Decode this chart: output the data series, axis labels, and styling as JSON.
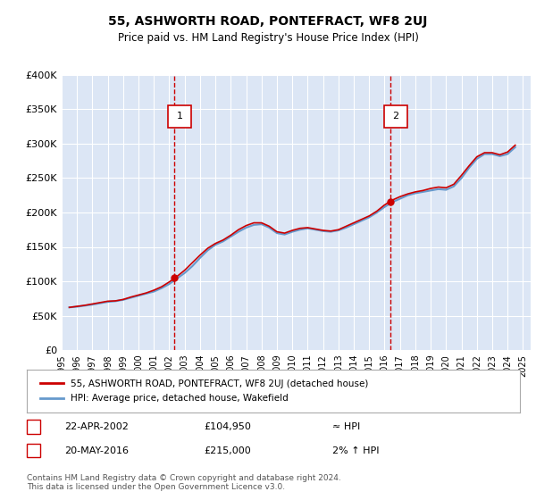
{
  "title": "55, ASHWORTH ROAD, PONTEFRACT, WF8 2UJ",
  "subtitle": "Price paid vs. HM Land Registry's House Price Index (HPI)",
  "background_color": "#dce6f5",
  "plot_bg_color": "#dce6f5",
  "ylabel_color": "#000000",
  "grid_color": "#ffffff",
  "red_line_color": "#cc0000",
  "blue_line_color": "#6699cc",
  "transaction_line_color": "#cc0000",
  "marker_box_color": "#cc0000",
  "ylim": [
    0,
    400000
  ],
  "yticks": [
    0,
    50000,
    100000,
    150000,
    200000,
    250000,
    300000,
    350000,
    400000
  ],
  "ytick_labels": [
    "£0",
    "£50K",
    "£100K",
    "£150K",
    "£200K",
    "£250K",
    "£300K",
    "£350K",
    "£400K"
  ],
  "xlim_start": 1995.0,
  "xlim_end": 2025.5,
  "transactions": [
    {
      "year": 2002.31,
      "price": 104950,
      "label": "1",
      "date": "22-APR-2002",
      "amount": "£104,950",
      "relation": "≈ HPI"
    },
    {
      "year": 2016.38,
      "price": 215000,
      "label": "2",
      "date": "20-MAY-2016",
      "amount": "£215,000",
      "relation": "2% ↑ HPI"
    }
  ],
  "legend_label_red": "55, ASHWORTH ROAD, PONTEFRACT, WF8 2UJ (detached house)",
  "legend_label_blue": "HPI: Average price, detached house, Wakefield",
  "footnote": "Contains HM Land Registry data © Crown copyright and database right 2024.\nThis data is licensed under the Open Government Licence v3.0.",
  "hpi_data": {
    "years": [
      1995.5,
      1996.0,
      1996.5,
      1997.0,
      1997.5,
      1998.0,
      1998.5,
      1999.0,
      1999.5,
      2000.0,
      2000.5,
      2001.0,
      2001.5,
      2002.0,
      2002.5,
      2003.0,
      2003.5,
      2004.0,
      2004.5,
      2005.0,
      2005.5,
      2006.0,
      2006.5,
      2007.0,
      2007.5,
      2008.0,
      2008.5,
      2009.0,
      2009.5,
      2010.0,
      2010.5,
      2011.0,
      2011.5,
      2012.0,
      2012.5,
      2013.0,
      2013.5,
      2014.0,
      2014.5,
      2015.0,
      2015.5,
      2016.0,
      2016.5,
      2017.0,
      2017.5,
      2018.0,
      2018.5,
      2019.0,
      2019.5,
      2020.0,
      2020.5,
      2021.0,
      2021.5,
      2022.0,
      2022.5,
      2023.0,
      2023.5,
      2024.0,
      2024.5
    ],
    "values": [
      62000,
      63000,
      64500,
      66000,
      68000,
      70000,
      71000,
      73000,
      76000,
      79000,
      82000,
      85000,
      90000,
      96000,
      104000,
      112000,
      122000,
      134000,
      145000,
      153000,
      158000,
      165000,
      172000,
      178000,
      182000,
      183000,
      178000,
      170000,
      168000,
      172000,
      175000,
      177000,
      175000,
      173000,
      172000,
      174000,
      178000,
      183000,
      188000,
      193000,
      200000,
      208000,
      215000,
      220000,
      225000,
      228000,
      230000,
      232000,
      234000,
      233000,
      238000,
      250000,
      265000,
      278000,
      285000,
      285000,
      282000,
      285000,
      295000
    ]
  },
  "price_data": {
    "years": [
      1995.5,
      1996.0,
      1996.5,
      1997.0,
      1997.5,
      1998.0,
      1998.5,
      1999.0,
      1999.5,
      2000.0,
      2000.5,
      2001.0,
      2001.5,
      2002.0,
      2002.5,
      2003.0,
      2003.5,
      2004.0,
      2004.5,
      2005.0,
      2005.5,
      2006.0,
      2006.5,
      2007.0,
      2007.5,
      2008.0,
      2008.5,
      2009.0,
      2009.5,
      2010.0,
      2010.5,
      2011.0,
      2011.5,
      2012.0,
      2012.5,
      2013.0,
      2013.5,
      2014.0,
      2014.5,
      2015.0,
      2015.5,
      2016.0,
      2016.5,
      2017.0,
      2017.5,
      2018.0,
      2018.5,
      2019.0,
      2019.5,
      2020.0,
      2020.5,
      2021.0,
      2021.5,
      2022.0,
      2022.5,
      2023.0,
      2023.5,
      2024.0,
      2024.5
    ],
    "values": [
      62000,
      63500,
      65000,
      67000,
      69000,
      71000,
      71500,
      73500,
      77000,
      80000,
      83000,
      87000,
      92000,
      99000,
      107000,
      116000,
      127000,
      138000,
      148000,
      155000,
      160000,
      167000,
      175000,
      181000,
      185000,
      185000,
      180000,
      172000,
      170000,
      174000,
      177000,
      178000,
      176000,
      174000,
      173000,
      175000,
      180000,
      185000,
      190000,
      195000,
      202000,
      211000,
      218000,
      223000,
      227000,
      230000,
      232000,
      235000,
      237000,
      236000,
      241000,
      254000,
      268000,
      281000,
      287000,
      287000,
      284000,
      288000,
      298000
    ]
  }
}
